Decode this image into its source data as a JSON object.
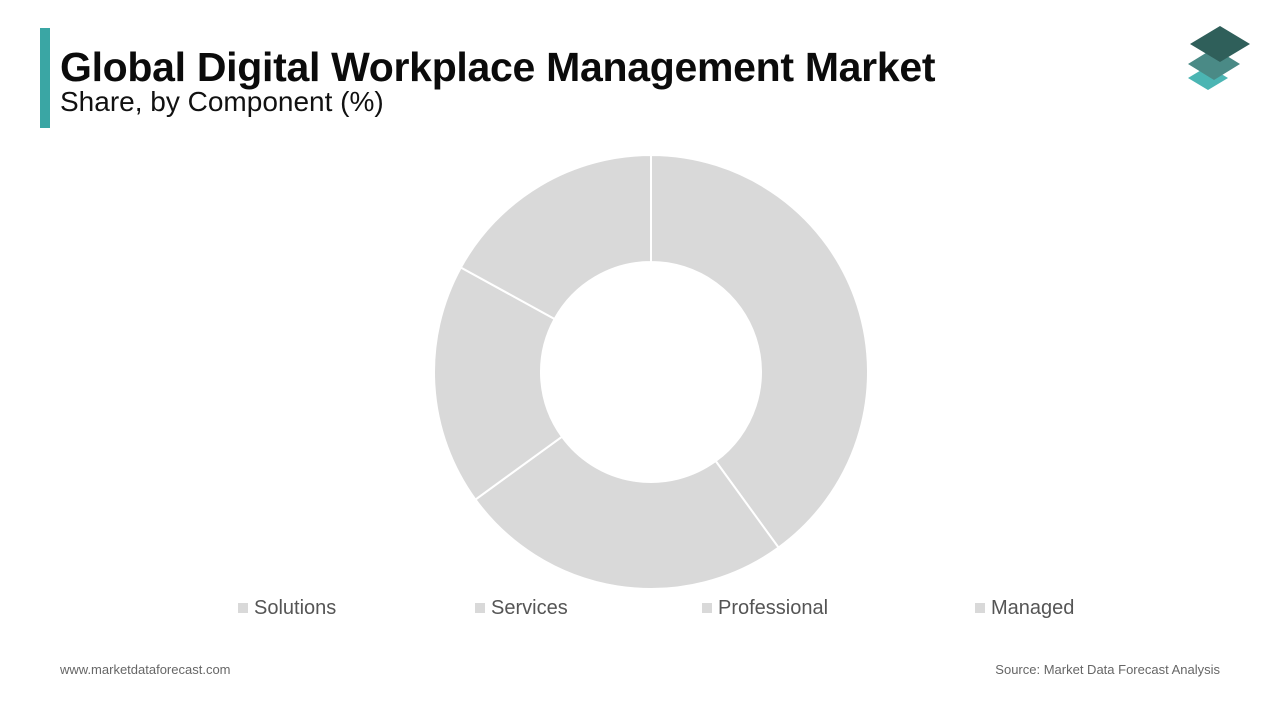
{
  "header": {
    "title": "Global Digital Workplace Management Market",
    "subtitle": "Share, by Component (%)"
  },
  "colors": {
    "accent": "#3aa6a4",
    "slice_fill": "#d9d9d9",
    "slice_stroke": "#ffffff",
    "logo_dark": "#2f5f5a",
    "logo_mid": "#4a8a86",
    "logo_light": "#4bb5b3"
  },
  "logo": {
    "icon": "stacked-layers-icon"
  },
  "chart_data": {
    "type": "pie",
    "variant": "donut",
    "title": "",
    "categories": [
      "Solutions",
      "Services",
      "Professional",
      "Managed"
    ],
    "legend_position": "bottom",
    "slices": [
      {
        "name": "",
        "value": 40
      },
      {
        "name": "",
        "value": 25
      },
      {
        "name": "",
        "value": 18
      },
      {
        "name": "",
        "value": 17
      }
    ]
  },
  "footer": {
    "website": "www.marketdataforecast.com",
    "source": "Source: Market Data Forecast Analysis"
  }
}
